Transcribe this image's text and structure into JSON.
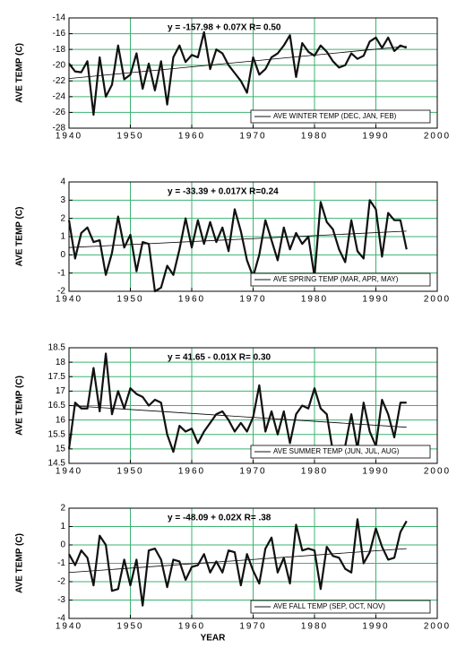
{
  "chart_data": [
    {
      "type": "line",
      "annotation": "y = -157.98 + 0.07X R= 0.50",
      "y_label": "AVE TEMP (C)",
      "x": [
        1940,
        1941,
        1942,
        1943,
        1944,
        1945,
        1946,
        1947,
        1948,
        1949,
        1950,
        1951,
        1952,
        1953,
        1954,
        1955,
        1956,
        1957,
        1958,
        1959,
        1960,
        1961,
        1962,
        1963,
        1964,
        1965,
        1966,
        1967,
        1968,
        1969,
        1970,
        1971,
        1972,
        1973,
        1974,
        1975,
        1976,
        1977,
        1978,
        1979,
        1980,
        1981,
        1982,
        1983,
        1984,
        1985,
        1986,
        1987,
        1988,
        1989,
        1990,
        1991,
        1992,
        1993,
        1994,
        1995
      ],
      "series": [
        {
          "name": "AVE WINTER TEMP (DEC, JAN, FEB)",
          "color": "#111111",
          "values": [
            -19.8,
            -20.8,
            -20.9,
            -19.5,
            -26.3,
            -19,
            -24,
            -22.5,
            -17.5,
            -21.8,
            -21.2,
            -18.5,
            -23,
            -19.8,
            -23.2,
            -19.5,
            -25,
            -19,
            -17.5,
            -19.6,
            -18.7,
            -19,
            -15.8,
            -20.5,
            -18,
            -18.5,
            -20,
            -21,
            -22,
            -23.5,
            -19,
            -21.2,
            -20.5,
            -19,
            -18.5,
            -17.5,
            -16.2,
            -21.5,
            -17.2,
            -18.3,
            -18.8,
            -17.5,
            -18.3,
            -19.5,
            -20.3,
            -20,
            -18.5,
            -19.2,
            -18.8,
            -17,
            -16.5,
            -17.8,
            -16.5,
            -18.2,
            -17.5,
            -17.8
          ]
        }
      ],
      "trendline": {
        "x": [
          1940,
          1995
        ],
        "values": [
          -21.7,
          -17.6
        ]
      },
      "xlim": [
        1940,
        2000
      ],
      "xticks": [
        1940,
        1950,
        1960,
        1970,
        1980,
        1990,
        2000
      ],
      "ylim": [
        -28,
        -14
      ],
      "yticks": [
        -28,
        -26,
        -24,
        -22,
        -20,
        -18,
        -16,
        -14
      ],
      "grid": true,
      "grid_color": "#3cb371",
      "legend": "lower right"
    },
    {
      "type": "line",
      "annotation": "y = -33.39 + 0.017X R=0.24",
      "y_label": "AVE TEMP (C)",
      "x": [
        1940,
        1941,
        1942,
        1943,
        1944,
        1945,
        1946,
        1947,
        1948,
        1949,
        1950,
        1951,
        1952,
        1953,
        1954,
        1955,
        1956,
        1957,
        1958,
        1959,
        1960,
        1961,
        1962,
        1963,
        1964,
        1965,
        1966,
        1967,
        1968,
        1969,
        1970,
        1971,
        1972,
        1973,
        1974,
        1975,
        1976,
        1977,
        1978,
        1979,
        1980,
        1981,
        1982,
        1983,
        1984,
        1985,
        1986,
        1987,
        1988,
        1989,
        1990,
        1991,
        1992,
        1993,
        1994,
        1995
      ],
      "series": [
        {
          "name": "AVE SPRING TEMP (MAR, APR, MAY)",
          "color": "#111111",
          "values": [
            1.9,
            -0.2,
            1.2,
            1.5,
            0.7,
            0.8,
            -1.1,
            0.1,
            2.1,
            0.4,
            1.1,
            -0.9,
            0.7,
            0.6,
            -2,
            -1.8,
            -0.6,
            -1.1,
            0.3,
            2,
            0.4,
            1.9,
            0.6,
            1.8,
            0.7,
            1.5,
            0.2,
            2.5,
            1.3,
            -0.3,
            -1.2,
            0,
            1.9,
            0.8,
            -0.3,
            1.5,
            0.3,
            1.2,
            0.6,
            1,
            -1.2,
            2.9,
            1.8,
            1.4,
            0.3,
            -0.4,
            1.9,
            0.2,
            -0.2,
            3,
            2.5,
            -0.1,
            2.3,
            1.9,
            1.9,
            0.3
          ]
        }
      ],
      "trendline": {
        "x": [
          1940,
          1995
        ],
        "values": [
          0.4,
          1.3
        ]
      },
      "xlim": [
        1940,
        2000
      ],
      "xticks": [
        1940,
        1950,
        1960,
        1970,
        1980,
        1990,
        2000
      ],
      "ylim": [
        -2,
        4
      ],
      "yticks": [
        -2,
        -1,
        0,
        1,
        2,
        3,
        4
      ],
      "grid": true,
      "grid_color": "#3cb371",
      "legend": "lower right"
    },
    {
      "type": "line",
      "annotation": "y = 41.65 - 0.01X R= 0.30",
      "y_label": "AVE TEMP (C)",
      "x": [
        1940,
        1941,
        1942,
        1943,
        1944,
        1945,
        1946,
        1947,
        1948,
        1949,
        1950,
        1951,
        1952,
        1953,
        1954,
        1955,
        1956,
        1957,
        1958,
        1959,
        1960,
        1961,
        1962,
        1963,
        1964,
        1965,
        1966,
        1967,
        1968,
        1969,
        1970,
        1971,
        1972,
        1973,
        1974,
        1975,
        1976,
        1977,
        1978,
        1979,
        1980,
        1981,
        1982,
        1983,
        1984,
        1985,
        1986,
        1987,
        1988,
        1989,
        1990,
        1991,
        1992,
        1993,
        1994,
        1995
      ],
      "series": [
        {
          "name": "AVE SUMMER TEMP (JUN, JUL, AUG)",
          "color": "#111111",
          "values": [
            15,
            16.6,
            16.4,
            16.4,
            17.8,
            16.3,
            18.3,
            16.2,
            17,
            16.4,
            17.1,
            16.9,
            16.8,
            16.5,
            16.7,
            16.6,
            15.5,
            14.9,
            15.8,
            15.6,
            15.7,
            15.2,
            15.6,
            15.9,
            16.2,
            16.3,
            16,
            15.6,
            15.9,
            15.6,
            16.1,
            17.2,
            15.6,
            16.3,
            15.5,
            16.3,
            15.2,
            16.2,
            16.5,
            16.4,
            17.1,
            16.4,
            16.2,
            14.9,
            15.1,
            15.1,
            16.2,
            15,
            16.6,
            15.6,
            15.1,
            16.7,
            16.2,
            15.4,
            16.6,
            16.6
          ]
        }
      ],
      "trendline": {
        "x": [
          1940,
          1995
        ],
        "values": [
          16.5,
          15.75
        ]
      },
      "xlim": [
        1940,
        2000
      ],
      "xticks": [
        1940,
        1950,
        1960,
        1970,
        1980,
        1990,
        2000
      ],
      "ylim": [
        14.5,
        18.5
      ],
      "yticks": [
        14.5,
        15,
        15.5,
        16,
        16.5,
        17,
        17.5,
        18,
        18.5
      ],
      "grid": true,
      "grid_color": "#3cb371",
      "legend": "lower right"
    },
    {
      "type": "line",
      "annotation": "y = -48.09 + 0.02X R= .38",
      "y_label": "AVE TEMP (C)",
      "x_label": "YEAR",
      "x": [
        1940,
        1941,
        1942,
        1943,
        1944,
        1945,
        1946,
        1947,
        1948,
        1949,
        1950,
        1951,
        1952,
        1953,
        1954,
        1955,
        1956,
        1957,
        1958,
        1959,
        1960,
        1961,
        1962,
        1963,
        1964,
        1965,
        1966,
        1967,
        1968,
        1969,
        1970,
        1971,
        1972,
        1973,
        1974,
        1975,
        1976,
        1977,
        1978,
        1979,
        1980,
        1981,
        1982,
        1983,
        1984,
        1985,
        1986,
        1987,
        1988,
        1989,
        1990,
        1991,
        1992,
        1993,
        1994,
        1995
      ],
      "series": [
        {
          "name": "AVE FALL TEMP (SEP, OCT, NOV)",
          "color": "#111111",
          "values": [
            -0.5,
            -1.1,
            -0.3,
            -0.7,
            -2.2,
            0.5,
            0,
            -2.5,
            -2.4,
            -0.8,
            -2.2,
            -0.8,
            -3.3,
            -0.3,
            -0.2,
            -0.8,
            -2.3,
            -0.8,
            -0.9,
            -1.9,
            -1.2,
            -1.1,
            -0.5,
            -1.5,
            -0.9,
            -1.5,
            -0.3,
            -0.4,
            -2.2,
            -0.5,
            -1.4,
            -2.1,
            -0.2,
            0.4,
            -1.5,
            -0.7,
            -2.1,
            1.1,
            -0.3,
            -0.2,
            -0.3,
            -2.4,
            -0.1,
            -0.6,
            -0.7,
            -1.3,
            -1.5,
            1.4,
            -1,
            -0.4,
            0.9,
            -0.1,
            -0.8,
            -0.7,
            0.7,
            1.3
          ]
        }
      ],
      "trendline": {
        "x": [
          1940,
          1995
        ],
        "values": [
          -1.5,
          -0.2
        ]
      },
      "xlim": [
        1940,
        2000
      ],
      "xticks": [
        1940,
        1950,
        1960,
        1970,
        1980,
        1990,
        2000
      ],
      "ylim": [
        -4,
        2
      ],
      "yticks": [
        -4,
        -3,
        -2,
        -1,
        0,
        1,
        2
      ],
      "grid": true,
      "grid_color": "#3cb371",
      "legend": "lower right"
    }
  ]
}
